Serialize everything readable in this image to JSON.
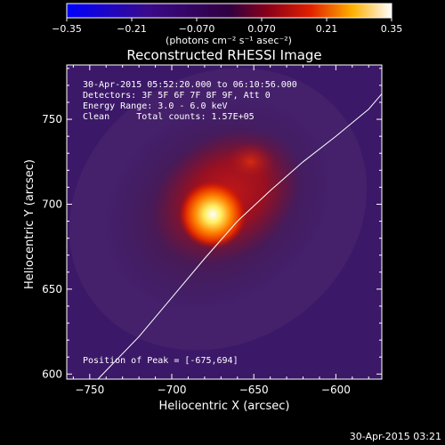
{
  "chart_data": {
    "type": "heatmap",
    "title": "Reconstructed RHESSI Image",
    "xlabel": "Heliocentric X (arcsec)",
    "ylabel": "Heliocentric Y (arcsec)",
    "xlim": [
      -764,
      -572
    ],
    "ylim": [
      597,
      782
    ],
    "x_ticks": [
      -750,
      -700,
      -650,
      -600
    ],
    "y_ticks": [
      600,
      650,
      700,
      750
    ],
    "x_tick_labels": [
      "−750",
      "−700",
      "−650",
      "−600"
    ],
    "y_tick_labels": [
      "600",
      "650",
      "700",
      "750"
    ],
    "colorbar": {
      "range": [
        -0.35,
        0.35
      ],
      "ticks": [
        -0.35,
        -0.21,
        -0.07,
        0.07,
        0.21,
        0.35
      ],
      "tick_labels": [
        "−0.35",
        "−0.21",
        "−0.070",
        "0.070",
        "0.21",
        "0.35"
      ],
      "units_label": "(photons cm⁻² s⁻¹ asec⁻²)"
    },
    "annotations": [
      "30-Apr-2015 05:52:20.000 to 06:10:56.000",
      "Detectors: 3F 5F 6F 7F 8F 9F, Att 0",
      "Energy Range: 3.0 - 6.0 keV",
      "Clean     Total counts: 1.57E+05"
    ],
    "peak_label": "Position of Peak = [-675,694]",
    "peak": {
      "x": -675,
      "y": 694,
      "value": 0.35
    },
    "secondary_source": {
      "x": -652,
      "y": 725
    },
    "limb_curve": [
      [
        -745,
        597
      ],
      [
        -720,
        622
      ],
      [
        -700,
        645
      ],
      [
        -680,
        668
      ],
      [
        -660,
        690
      ],
      [
        -640,
        708
      ],
      [
        -620,
        725
      ],
      [
        -600,
        740
      ],
      [
        -580,
        756
      ],
      [
        -572,
        765
      ]
    ]
  },
  "footer": {
    "timestamp": "30-Apr-2015 03:21"
  }
}
